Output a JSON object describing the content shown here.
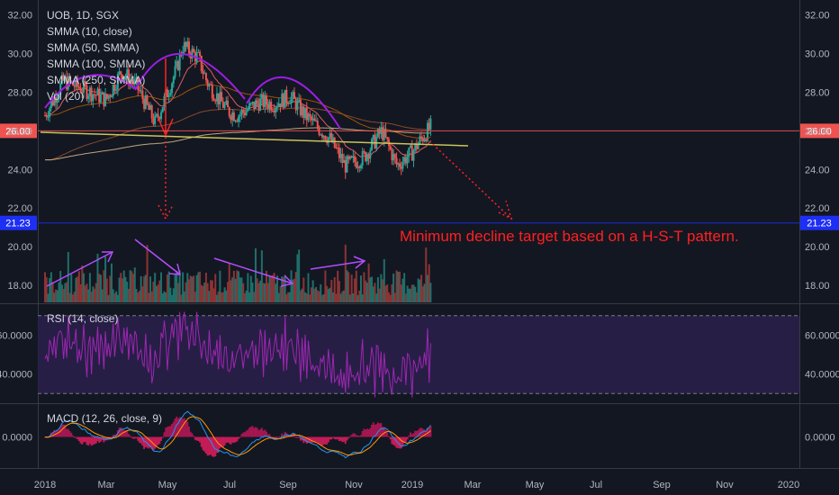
{
  "chart_data": [
    {
      "type": "candlestick",
      "title": "UOB, 1D, SGX",
      "legend": [
        "SMMA (10, close)",
        "SMMA (50, SMMA)",
        "SMMA (100, SMMA)",
        "SMMA (250, SMMA)",
        "Vol (20)"
      ],
      "ylim": [
        17,
        32.5
      ],
      "y_ticks": [
        "32.00",
        "30.00",
        "28.00",
        "26.00",
        "24.00",
        "22.00",
        "20.00",
        "18.00"
      ],
      "x_ticks": [
        "2018",
        "Mar",
        "May",
        "Jul",
        "Sep",
        "Nov",
        "2019",
        "Mar",
        "May",
        "Jul",
        "Sep",
        "Nov",
        "2020"
      ],
      "price_path": [
        [
          0,
          26.8
        ],
        [
          0.6,
          28.6
        ],
        [
          1.5,
          28.0
        ],
        [
          2,
          27.6
        ],
        [
          2.5,
          29.1
        ],
        [
          3,
          28.3
        ],
        [
          3.6,
          26.4
        ],
        [
          4.3,
          29.2
        ],
        [
          4.5,
          30.4
        ],
        [
          5,
          29.8
        ],
        [
          5.3,
          28.5
        ],
        [
          5.7,
          27.6
        ],
        [
          6,
          27.0
        ],
        [
          6.3,
          26.8
        ],
        [
          7,
          27.5
        ],
        [
          7.5,
          27.4
        ],
        [
          8,
          27.8
        ],
        [
          8.5,
          26.8
        ],
        [
          9.3,
          25.6
        ],
        [
          9.8,
          24.2
        ],
        [
          10.4,
          24.6
        ],
        [
          11,
          26.0
        ],
        [
          11.5,
          24.2
        ],
        [
          12,
          24.9
        ],
        [
          12.3,
          25.6
        ],
        [
          12.6,
          26.2
        ]
      ],
      "horizontal_lines": [
        {
          "value": 26.0,
          "label": "26.00",
          "color": "#ef5350"
        },
        {
          "value": 21.23,
          "label": "21.23",
          "color": "#1e2ff5"
        }
      ],
      "annotation": "Minimum decline target based on a H-S-T pattern."
    },
    {
      "type": "line",
      "title": "RSI (14, close)",
      "y_ticks": [
        "60.0000",
        "40.0000"
      ],
      "ylim": [
        25,
        75
      ],
      "band": [
        30,
        70
      ]
    },
    {
      "type": "line",
      "title": "MACD (12, 26, close, 9)",
      "y_ticks": [
        "0.0000"
      ],
      "ylim": [
        -0.9,
        0.9
      ]
    }
  ]
}
